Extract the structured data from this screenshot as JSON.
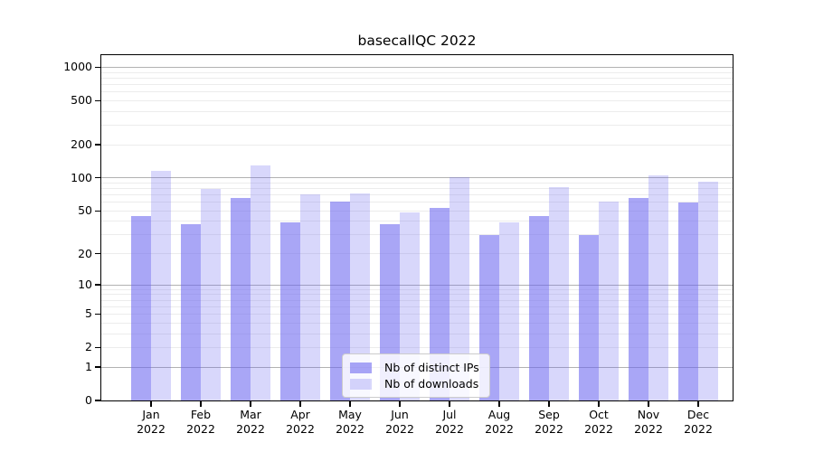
{
  "title": "basecallQC 2022",
  "chart_data": {
    "type": "bar",
    "title": "basecallQC 2022",
    "categories": [
      "Jan",
      "Feb",
      "Mar",
      "Apr",
      "May",
      "Jun",
      "Jul",
      "Aug",
      "Sep",
      "Oct",
      "Nov",
      "Dec"
    ],
    "category_year": "2022",
    "series": [
      {
        "name": "Nb of distinct IPs",
        "color": "rgba(103,98,240,0.57)",
        "values": [
          45,
          38,
          66,
          39,
          61,
          38,
          53,
          30,
          45,
          30,
          66,
          60
        ]
      },
      {
        "name": "Nb of downloads",
        "color": "rgba(103,98,240,0.255)",
        "values": [
          115,
          80,
          130,
          71,
          72,
          48,
          102,
          39,
          82,
          61,
          106,
          93
        ]
      }
    ],
    "xlabel": "",
    "ylabel": "",
    "yscale": "log1p",
    "ylim": [
      0,
      1287
    ],
    "yticks": [
      0,
      1,
      2,
      5,
      10,
      20,
      50,
      100,
      200,
      500,
      1000
    ],
    "grid": {
      "major_ticks": [
        1,
        10,
        100,
        1000
      ],
      "minor_ticks": [
        2,
        3,
        4,
        5,
        6,
        7,
        8,
        9,
        20,
        30,
        40,
        50,
        60,
        70,
        80,
        90,
        200,
        300,
        400,
        500,
        600,
        700,
        800,
        900
      ],
      "major_color": "#b2b2b2",
      "minor_color": "#ececec"
    },
    "legend": {
      "position": "lower-center"
    }
  }
}
